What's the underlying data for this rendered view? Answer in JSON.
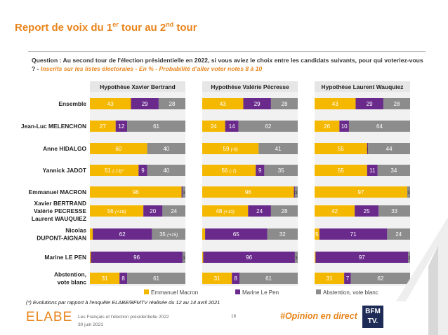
{
  "header": {
    "title_parts": [
      "Report de voix du 1",
      "er",
      " tour au 2",
      "nd",
      " tour"
    ],
    "question": "Question : Au second tour de l'élection présidentielle en 2022, si vous aviez le choix entre les candidats suivants, pour qui voteriez-vous ? -",
    "question_sub": "Inscrits sur les listes électorales - En % - Probabilité d'aller voter notes 8 à 10"
  },
  "colors": {
    "macron": "#f5b800",
    "lepen": "#6a2a8c",
    "abstention": "#8c8c8c",
    "accent": "#e8841b"
  },
  "chart_data": {
    "type": "bar",
    "stacked": true,
    "orientation": "horizontal",
    "xlim": [
      0,
      100
    ],
    "categories": [
      "Ensemble",
      "Jean-Luc MELENCHON",
      "Anne HIDALGO",
      "Yannick JADOT",
      "Emmanuel MACRON",
      "Xavier BERTRAND\nValérie PECRESSE\nLaurent WAUQUIEZ",
      "Nicolas\nDUPONT-AIGNAN",
      "Marine LE PEN",
      "Abstention,\nvote blanc"
    ],
    "legend": [
      "Emmanuel Macron",
      "Marine Le Pen",
      "Abstention, vote blanc"
    ],
    "legend_position": "bottom",
    "panels": [
      {
        "title": "Hypothèse Xavier Bertrand",
        "rows": [
          {
            "values": [
              43,
              29,
              28
            ],
            "labels": [
              "43",
              "29",
              "28"
            ],
            "notes": [
              "",
              "",
              ""
            ]
          },
          {
            "values": [
              27,
              12,
              61
            ],
            "labels": [
              "27",
              "12",
              "61"
            ],
            "notes": [
              "",
              "",
              ""
            ]
          },
          {
            "values": [
              60,
              0,
              40
            ],
            "labels": [
              "60",
              "",
              "40"
            ],
            "notes": [
              "",
              "",
              ""
            ]
          },
          {
            "values": [
              51,
              9,
              40
            ],
            "labels": [
              "51",
              "9",
              "40"
            ],
            "notes": [
              "(-13)*",
              "",
              ""
            ]
          },
          {
            "values": [
              96,
              1,
              3
            ],
            "labels": [
              "96",
              "",
              "3"
            ],
            "notes": [
              "",
              "",
              ""
            ]
          },
          {
            "values": [
              56,
              20,
              24
            ],
            "labels": [
              "56",
              "20",
              "24"
            ],
            "notes": [
              "(+18)",
              "",
              ""
            ]
          },
          {
            "values": [
              3,
              62,
              35
            ],
            "labels": [
              "",
              "62",
              "35"
            ],
            "notes": [
              "",
              "",
              "(+15)"
            ]
          },
          {
            "values": [
              1,
              96,
              3
            ],
            "labels": [
              "",
              "96",
              "3"
            ],
            "notes": [
              "",
              "",
              ""
            ]
          },
          {
            "values": [
              31,
              8,
              61
            ],
            "labels": [
              "31",
              "8",
              "61"
            ],
            "notes": [
              "",
              "",
              ""
            ]
          }
        ]
      },
      {
        "title": "Hypothèse Valérie Pécresse",
        "rows": [
          {
            "values": [
              43,
              29,
              28
            ],
            "labels": [
              "43",
              "29",
              "28"
            ],
            "notes": [
              "",
              "",
              ""
            ]
          },
          {
            "values": [
              24,
              14,
              62
            ],
            "labels": [
              "24",
              "14",
              "62"
            ],
            "notes": [
              "",
              "",
              ""
            ]
          },
          {
            "values": [
              59,
              0,
              41
            ],
            "labels": [
              "59",
              "",
              "41"
            ],
            "notes": [
              "(-6)",
              "",
              ""
            ]
          },
          {
            "values": [
              56,
              9,
              35
            ],
            "labels": [
              "56",
              "9",
              "35"
            ],
            "notes": [
              "(-7)",
              "",
              ""
            ]
          },
          {
            "values": [
              96,
              1,
              3
            ],
            "labels": [
              "96",
              "1",
              "3"
            ],
            "notes": [
              "",
              "",
              ""
            ]
          },
          {
            "values": [
              48,
              24,
              28
            ],
            "labels": [
              "48",
              "24",
              "28"
            ],
            "notes": [
              "(+10)",
              "",
              ""
            ]
          },
          {
            "values": [
              3,
              65,
              32
            ],
            "labels": [
              "",
              "65",
              "32"
            ],
            "notes": [
              "",
              "",
              ""
            ]
          },
          {
            "values": [
              1,
              96,
              3
            ],
            "labels": [
              "",
              "96",
              "3"
            ],
            "notes": [
              "",
              "",
              ""
            ]
          },
          {
            "values": [
              31,
              8,
              61
            ],
            "labels": [
              "31",
              "8",
              "61"
            ],
            "notes": [
              "",
              "",
              ""
            ]
          }
        ]
      },
      {
        "title": "Hypothèse Laurent Wauquiez",
        "rows": [
          {
            "values": [
              43,
              29,
              28
            ],
            "labels": [
              "43",
              "29",
              "28"
            ],
            "notes": [
              "",
              "",
              ""
            ]
          },
          {
            "values": [
              26,
              10,
              64
            ],
            "labels": [
              "26",
              "10",
              "64"
            ],
            "notes": [
              "",
              "",
              ""
            ]
          },
          {
            "values": [
              55,
              1,
              44
            ],
            "labels": [
              "55",
              "1",
              "44"
            ],
            "notes": [
              "",
              "",
              ""
            ]
          },
          {
            "values": [
              55,
              11,
              34
            ],
            "labels": [
              "55",
              "11",
              "34"
            ],
            "notes": [
              "",
              "",
              ""
            ]
          },
          {
            "values": [
              97,
              0,
              3
            ],
            "labels": [
              "97",
              "",
              "3"
            ],
            "notes": [
              "",
              "",
              ""
            ]
          },
          {
            "values": [
              42,
              25,
              33
            ],
            "labels": [
              "42",
              "25",
              "33"
            ],
            "notes": [
              "",
              "",
              ""
            ]
          },
          {
            "values": [
              5,
              71,
              24
            ],
            "labels": [
              "5",
              "71",
              "24"
            ],
            "notes": [
              "",
              "",
              ""
            ]
          },
          {
            "values": [
              1,
              97,
              2
            ],
            "labels": [
              "",
              "97",
              "2"
            ],
            "notes": [
              "",
              "",
              ""
            ]
          },
          {
            "values": [
              31,
              7,
              62
            ],
            "labels": [
              "31",
              "7",
              "62"
            ],
            "notes": [
              "",
              "",
              ""
            ]
          }
        ]
      }
    ]
  },
  "footer": {
    "footnote": "(*) Evolutions par rapport à l'enquête ELABE/BFMTV réalisée du 12 au 14 avril 2021",
    "logo": "ELABE",
    "study": "Les Français et l'élection présidentielle 2022",
    "date": "30 juin 2021",
    "page": "16",
    "hashtag": "#Opinion en direct",
    "bfm_top": "BFM",
    "bfm_bottom": "TV."
  }
}
